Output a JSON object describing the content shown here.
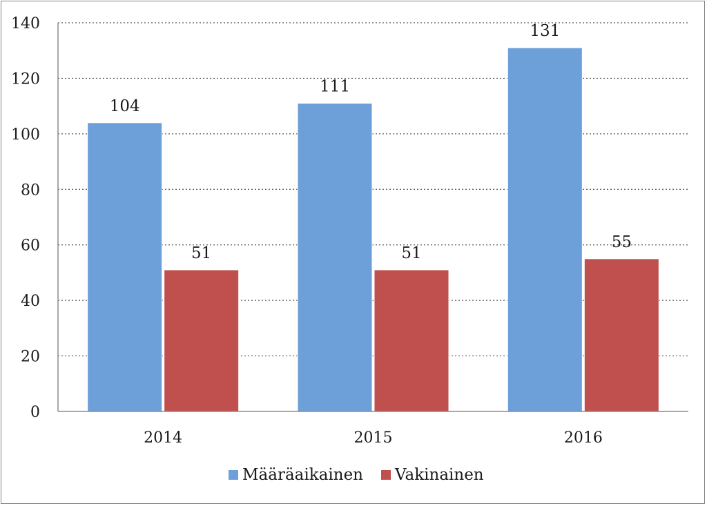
{
  "chart_data": {
    "type": "bar",
    "title": "",
    "xlabel": "",
    "ylabel": "",
    "categories": [
      "2014",
      "2015",
      "2016"
    ],
    "series": [
      {
        "name": "Määräaikainen",
        "values": [
          104,
          111,
          131
        ],
        "color": "#6d9fd9"
      },
      {
        "name": "Vakinainen",
        "values": [
          51,
          51,
          55
        ],
        "color": "#c0504d"
      }
    ],
    "ylim": [
      0,
      140
    ],
    "yticks": [
      0,
      20,
      40,
      60,
      80,
      100,
      120,
      140
    ],
    "grid": true,
    "legend_position": "bottom"
  }
}
